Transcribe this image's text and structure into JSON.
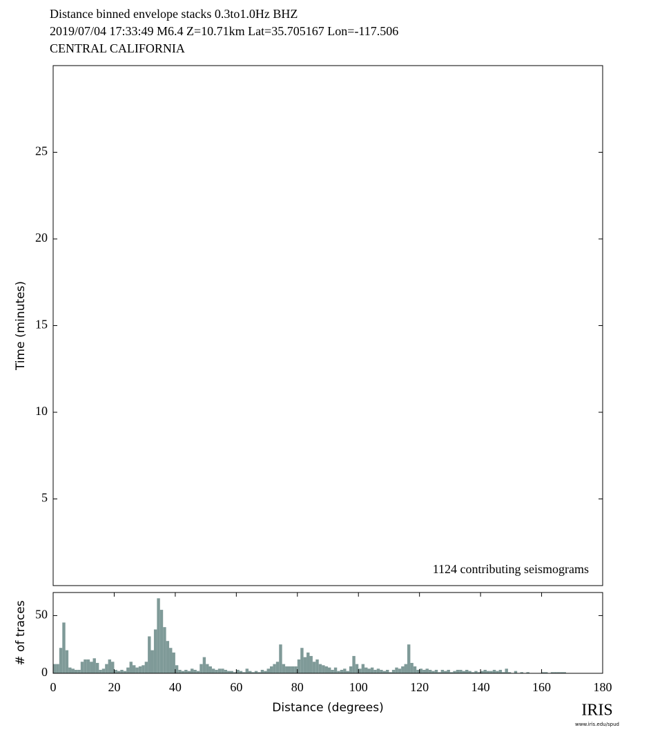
{
  "chart_data": [
    {
      "type": "heatmap",
      "title": "Distance binned envelope stacks  0.3to1.0Hz  BHZ",
      "subtitle": [
        "2019/07/04  17:33:49  M6.4  Z=10.71km Lat=35.705167 Lon=-117.506",
        "CENTRAL CALIFORNIA"
      ],
      "ylabel": "Time (minutes)",
      "annotation": "1124 contributing seismograms",
      "ylim": [
        0,
        30
      ],
      "yticks": [
        5,
        10,
        15,
        20,
        25
      ]
    },
    {
      "type": "histogram",
      "xlabel": "Distance (degrees)",
      "ylabel": "# of traces",
      "color": "#7f9a98",
      "xlim": [
        0,
        180
      ],
      "xticks": [
        0,
        20,
        40,
        60,
        80,
        100,
        120,
        140,
        160,
        180
      ],
      "ylim": [
        0,
        70
      ],
      "yticks": [
        0,
        50
      ],
      "bins": [
        0,
        1,
        2,
        3,
        4,
        5,
        6,
        7,
        8,
        9,
        10,
        11,
        12,
        13,
        14,
        15,
        16,
        17,
        18,
        19,
        20,
        21,
        22,
        23,
        24,
        25,
        26,
        27,
        28,
        29,
        30,
        31,
        32,
        33,
        34,
        35,
        36,
        37,
        38,
        39,
        40,
        41,
        42,
        43,
        44,
        45,
        46,
        47,
        48,
        49,
        50,
        51,
        52,
        53,
        54,
        55,
        56,
        57,
        58,
        59,
        60,
        61,
        62,
        63,
        64,
        65,
        66,
        67,
        68,
        69,
        70,
        71,
        72,
        73,
        74,
        75,
        76,
        77,
        78,
        79,
        80,
        81,
        82,
        83,
        84,
        85,
        86,
        87,
        88,
        89,
        90,
        91,
        92,
        93,
        94,
        95,
        96,
        97,
        98,
        99,
        100,
        101,
        102,
        103,
        104,
        105,
        106,
        107,
        108,
        109,
        110,
        111,
        112,
        113,
        114,
        115,
        116,
        117,
        118,
        119,
        120,
        121,
        122,
        123,
        124,
        125,
        126,
        127,
        128,
        129,
        130,
        131,
        132,
        133,
        134,
        135,
        136,
        137,
        138,
        139,
        140,
        141,
        142,
        143,
        144,
        145,
        146,
        147,
        148,
        149,
        150,
        151,
        152,
        153,
        154,
        155,
        156,
        157,
        158,
        159,
        160,
        161,
        162,
        163,
        164,
        165,
        166,
        167,
        168,
        169,
        170
      ],
      "counts": [
        8,
        8,
        22,
        44,
        20,
        5,
        4,
        3,
        3,
        10,
        12,
        12,
        10,
        13,
        9,
        3,
        4,
        8,
        12,
        10,
        3,
        2,
        3,
        2,
        5,
        10,
        7,
        5,
        6,
        7,
        10,
        32,
        20,
        38,
        65,
        55,
        40,
        28,
        22,
        18,
        7,
        3,
        2,
        3,
        2,
        4,
        3,
        2,
        8,
        14,
        8,
        6,
        4,
        3,
        4,
        4,
        3,
        2,
        2,
        1,
        3,
        2,
        1,
        4,
        2,
        1,
        2,
        1,
        3,
        2,
        4,
        6,
        8,
        10,
        25,
        8,
        6,
        6,
        6,
        6,
        12,
        22,
        14,
        18,
        15,
        10,
        12,
        8,
        7,
        6,
        5,
        3,
        5,
        2,
        3,
        4,
        2,
        6,
        15,
        8,
        4,
        8,
        5,
        4,
        5,
        3,
        4,
        3,
        2,
        3,
        1,
        3,
        5,
        4,
        6,
        8,
        25,
        9,
        6,
        3,
        4,
        3,
        4,
        3,
        2,
        3,
        1,
        3,
        2,
        3,
        1,
        2,
        3,
        3,
        2,
        3,
        2,
        1,
        2,
        1,
        2,
        3,
        2,
        2,
        3,
        2,
        3,
        1,
        4,
        1,
        0,
        2,
        0,
        1,
        0,
        1,
        0,
        0,
        0,
        0,
        1,
        1,
        0,
        1,
        1,
        1,
        1,
        1,
        0,
        0
      ]
    }
  ],
  "logo": {
    "text": "IRIS",
    "url": "www.iris.edu/spud"
  }
}
